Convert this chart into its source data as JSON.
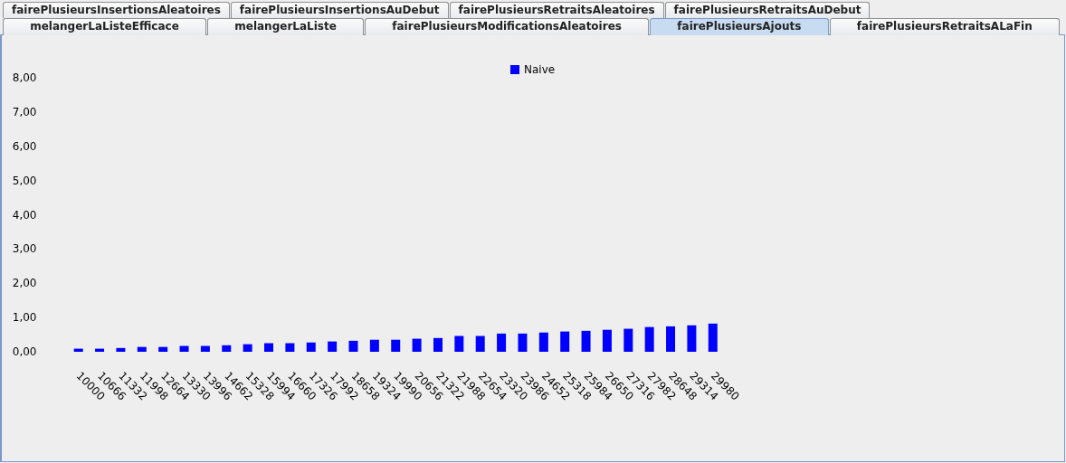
{
  "chart_data": {
    "type": "bar",
    "categories": [
      "10000",
      "10666",
      "11332",
      "11998",
      "12664",
      "13330",
      "13996",
      "14662",
      "15328",
      "15994",
      "16660",
      "17326",
      "17992",
      "18658",
      "19324",
      "19990",
      "20656",
      "21322",
      "21988",
      "22654",
      "23320",
      "23986",
      "24652",
      "25318",
      "25984",
      "26650",
      "27316",
      "27982",
      "28648",
      "29314",
      "29980"
    ],
    "series": [
      {
        "name": "Naive",
        "color": "#0000ff",
        "values": [
          0.09,
          0.09,
          0.11,
          0.14,
          0.14,
          0.17,
          0.17,
          0.19,
          0.22,
          0.25,
          0.25,
          0.27,
          0.3,
          0.32,
          0.35,
          0.35,
          0.38,
          0.4,
          0.46,
          0.46,
          0.53,
          0.53,
          0.56,
          0.59,
          0.61,
          0.64,
          0.67,
          0.72,
          0.74,
          0.77,
          0.82
        ]
      }
    ],
    "ylim": [
      0,
      8
    ],
    "yticks": [
      {
        "value": 0,
        "label": "0,00"
      },
      {
        "value": 1,
        "label": "1,00"
      },
      {
        "value": 2,
        "label": "2,00"
      },
      {
        "value": 3,
        "label": "3,00"
      },
      {
        "value": 4,
        "label": "4,00"
      },
      {
        "value": 5,
        "label": "5,00"
      },
      {
        "value": 6,
        "label": "6,00"
      },
      {
        "value": 7,
        "label": "7,00"
      },
      {
        "value": 8,
        "label": "8,00"
      }
    ],
    "legend": "top",
    "annotations": [
      "fairePlusieursInsertionsAleatoires",
      "fairePlusieursInsertionsAuDebut",
      "fairePlusieursRetraitsAleatoires",
      "fairePlusieursRetraitsAuDebut",
      "melangerLaListeEfficace",
      "melangerLaListe",
      "fairePlusieursModificationsAleatoires",
      "fairePlusieursAjouts",
      "fairePlusieursRetraitsALaFin"
    ]
  }
}
